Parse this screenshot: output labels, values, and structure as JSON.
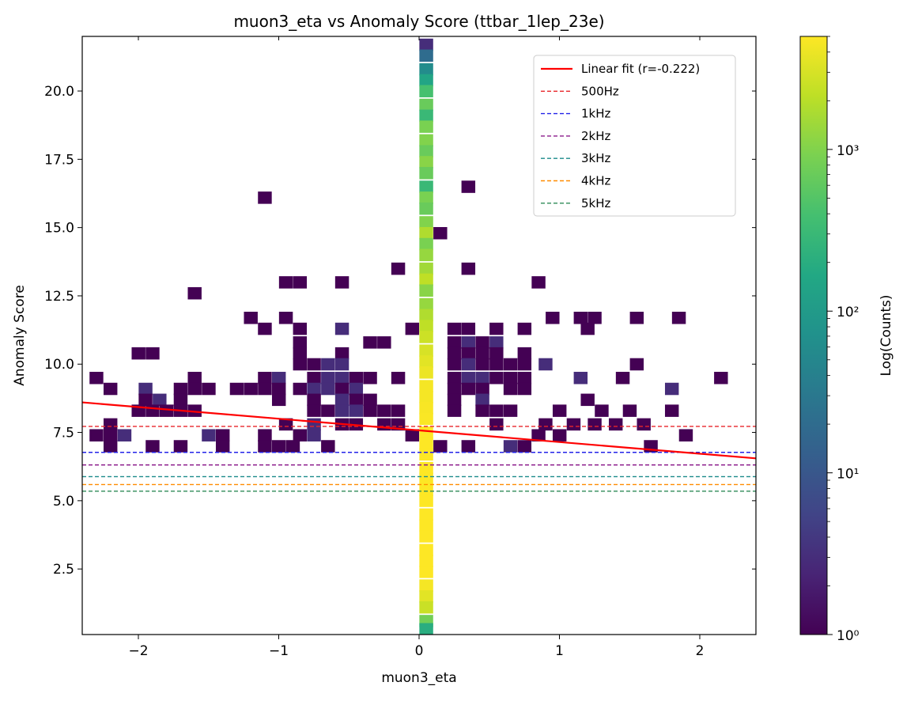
{
  "chart_data": {
    "type": "heatmap",
    "title": "muon3_eta vs Anomaly Score (ttbar_1lep_23e)",
    "xlabel": "muon3_eta",
    "ylabel": "Anomaly Score",
    "colorbar_label": "Log(Counts)",
    "colormap": "viridis",
    "color_scale": "log",
    "xlim": [
      -2.4,
      2.4
    ],
    "ylim": [
      0.1,
      22.0
    ],
    "x_ticks": [
      -2,
      -1,
      0,
      1,
      2
    ],
    "x_tick_labels": [
      "−2",
      "−1",
      "0",
      "1",
      "2"
    ],
    "y_ticks": [
      2.5,
      5.0,
      7.5,
      10.0,
      12.5,
      15.0,
      17.5,
      20.0
    ],
    "y_tick_labels": [
      "2.5",
      "5.0",
      "7.5",
      "10.0",
      "12.5",
      "15.0",
      "17.5",
      "20.0"
    ],
    "colorbar_ticks": [
      {
        "value": 1,
        "label": "10⁰"
      },
      {
        "value": 10,
        "label": "10¹"
      },
      {
        "value": 100,
        "label": "10²"
      },
      {
        "value": 1000,
        "label": "10³"
      }
    ],
    "colorbar_range": [
      1,
      5000
    ],
    "bin_width": {
      "x": 0.096,
      "y": 0.438
    },
    "bins": [
      [
        0.05,
        21.7,
        3
      ],
      [
        0.05,
        21.3,
        20
      ],
      [
        0.05,
        20.8,
        60
      ],
      [
        0.05,
        20.4,
        150
      ],
      [
        0.05,
        20.0,
        400
      ],
      [
        0.05,
        19.5,
        700
      ],
      [
        0.05,
        19.1,
        300
      ],
      [
        0.05,
        18.7,
        900
      ],
      [
        0.05,
        18.2,
        1000
      ],
      [
        0.05,
        17.8,
        700
      ],
      [
        0.05,
        17.4,
        1100
      ],
      [
        0.05,
        17.0,
        700
      ],
      [
        0.05,
        16.5,
        300
      ],
      [
        0.05,
        16.1,
        900
      ],
      [
        0.05,
        15.7,
        700
      ],
      [
        0.05,
        15.2,
        1000
      ],
      [
        0.05,
        14.8,
        1800
      ],
      [
        0.05,
        14.4,
        900
      ],
      [
        0.05,
        14.0,
        1300
      ],
      [
        0.05,
        13.5,
        1500
      ],
      [
        0.05,
        13.1,
        2200
      ],
      [
        0.05,
        12.7,
        1100
      ],
      [
        0.05,
        12.2,
        1300
      ],
      [
        0.05,
        11.8,
        1800
      ],
      [
        0.05,
        11.4,
        2200
      ],
      [
        0.05,
        11.0,
        2600
      ],
      [
        0.05,
        10.5,
        3000
      ],
      [
        0.05,
        10.1,
        3500
      ],
      [
        0.05,
        9.7,
        4000
      ],
      [
        0.05,
        9.2,
        4500
      ],
      [
        0.05,
        8.8,
        4500
      ],
      [
        0.05,
        8.4,
        4700
      ],
      [
        0.05,
        8.0,
        4800
      ],
      [
        0.05,
        7.5,
        5000
      ],
      [
        0.05,
        7.1,
        5000
      ],
      [
        0.05,
        6.7,
        5000
      ],
      [
        0.05,
        6.2,
        5000
      ],
      [
        0.05,
        5.8,
        5000
      ],
      [
        0.05,
        5.4,
        5000
      ],
      [
        0.05,
        5.0,
        5000
      ],
      [
        0.05,
        4.5,
        5000
      ],
      [
        0.05,
        4.1,
        5000
      ],
      [
        0.05,
        3.7,
        5000
      ],
      [
        0.05,
        3.2,
        5000
      ],
      [
        0.05,
        2.8,
        5000
      ],
      [
        0.05,
        2.4,
        5000
      ],
      [
        0.05,
        1.9,
        4500
      ],
      [
        0.05,
        1.5,
        3500
      ],
      [
        0.05,
        1.1,
        2500
      ],
      [
        0.05,
        0.6,
        800
      ],
      [
        0.05,
        0.3,
        200
      ],
      [
        -1.1,
        16.1,
        1
      ],
      [
        0.35,
        16.5,
        1
      ],
      [
        0.15,
        14.8,
        1
      ],
      [
        -0.15,
        13.5,
        1
      ],
      [
        0.35,
        13.5,
        1
      ],
      [
        -0.95,
        13.0,
        1
      ],
      [
        -0.85,
        13.0,
        1
      ],
      [
        -0.55,
        13.0,
        1
      ],
      [
        0.85,
        13.0,
        1
      ],
      [
        -1.6,
        12.6,
        1
      ],
      [
        -1.2,
        11.7,
        1
      ],
      [
        -0.95,
        11.7,
        1
      ],
      [
        0.95,
        11.7,
        1
      ],
      [
        1.15,
        11.7,
        1
      ],
      [
        1.25,
        11.7,
        1
      ],
      [
        1.55,
        11.7,
        1
      ],
      [
        1.85,
        11.7,
        1
      ],
      [
        -1.1,
        11.3,
        1
      ],
      [
        -0.85,
        11.3,
        1
      ],
      [
        -0.55,
        11.3,
        3
      ],
      [
        -0.05,
        11.3,
        1
      ],
      [
        0.25,
        11.3,
        1
      ],
      [
        0.35,
        11.3,
        1
      ],
      [
        0.55,
        11.3,
        1
      ],
      [
        0.75,
        11.3,
        1
      ],
      [
        1.2,
        11.3,
        1
      ],
      [
        -0.35,
        10.8,
        1
      ],
      [
        -0.25,
        10.8,
        1
      ],
      [
        -0.85,
        10.8,
        1
      ],
      [
        0.25,
        10.8,
        1
      ],
      [
        0.35,
        10.8,
        3
      ],
      [
        0.45,
        10.8,
        1
      ],
      [
        0.55,
        10.8,
        3
      ],
      [
        -2.0,
        10.4,
        1
      ],
      [
        -1.9,
        10.4,
        1
      ],
      [
        -0.85,
        10.4,
        1
      ],
      [
        -0.55,
        10.4,
        1
      ],
      [
        0.25,
        10.4,
        1
      ],
      [
        0.35,
        10.4,
        1
      ],
      [
        0.45,
        10.4,
        1
      ],
      [
        0.55,
        10.4,
        1
      ],
      [
        0.75,
        10.4,
        1
      ],
      [
        -0.85,
        10.0,
        1
      ],
      [
        -0.75,
        10.0,
        1
      ],
      [
        -0.65,
        10.0,
        3
      ],
      [
        -0.55,
        10.0,
        3
      ],
      [
        0.25,
        10.0,
        1
      ],
      [
        0.35,
        10.0,
        3
      ],
      [
        0.45,
        10.0,
        1
      ],
      [
        0.55,
        10.0,
        1
      ],
      [
        0.65,
        10.0,
        1
      ],
      [
        0.75,
        10.0,
        1
      ],
      [
        0.9,
        10.0,
        3
      ],
      [
        1.55,
        10.0,
        1
      ],
      [
        -2.3,
        9.5,
        1
      ],
      [
        -1.6,
        9.5,
        1
      ],
      [
        -1.1,
        9.5,
        1
      ],
      [
        -1.0,
        9.5,
        3
      ],
      [
        -0.75,
        9.5,
        1
      ],
      [
        -0.65,
        9.5,
        3
      ],
      [
        -0.55,
        9.5,
        3
      ],
      [
        -0.45,
        9.5,
        1
      ],
      [
        -0.35,
        9.5,
        1
      ],
      [
        -0.15,
        9.5,
        1
      ],
      [
        0.25,
        9.5,
        1
      ],
      [
        0.35,
        9.5,
        3
      ],
      [
        0.45,
        9.5,
        3
      ],
      [
        0.55,
        9.5,
        1
      ],
      [
        0.65,
        9.5,
        1
      ],
      [
        0.75,
        9.5,
        1
      ],
      [
        1.15,
        9.5,
        3
      ],
      [
        1.45,
        9.5,
        1
      ],
      [
        2.15,
        9.5,
        1
      ],
      [
        -2.2,
        9.1,
        1
      ],
      [
        -1.95,
        9.1,
        3
      ],
      [
        -1.7,
        9.1,
        1
      ],
      [
        -1.6,
        9.1,
        1
      ],
      [
        -1.5,
        9.1,
        1
      ],
      [
        -1.3,
        9.1,
        1
      ],
      [
        -1.2,
        9.1,
        1
      ],
      [
        -1.1,
        9.1,
        1
      ],
      [
        -1.0,
        9.1,
        1
      ],
      [
        -0.85,
        9.1,
        1
      ],
      [
        -0.75,
        9.1,
        3
      ],
      [
        -0.65,
        9.1,
        3
      ],
      [
        -0.55,
        9.1,
        1
      ],
      [
        -0.45,
        9.1,
        3
      ],
      [
        0.25,
        9.1,
        1
      ],
      [
        0.35,
        9.1,
        1
      ],
      [
        0.45,
        9.1,
        1
      ],
      [
        0.65,
        9.1,
        1
      ],
      [
        0.75,
        9.1,
        1
      ],
      [
        1.8,
        9.1,
        3
      ],
      [
        -1.95,
        8.7,
        1
      ],
      [
        -1.85,
        8.7,
        3
      ],
      [
        -1.7,
        8.7,
        1
      ],
      [
        -1.0,
        8.7,
        1
      ],
      [
        -0.75,
        8.7,
        1
      ],
      [
        -0.55,
        8.7,
        3
      ],
      [
        -0.45,
        8.7,
        1
      ],
      [
        -0.35,
        8.7,
        1
      ],
      [
        0.25,
        8.7,
        1
      ],
      [
        0.45,
        8.7,
        3
      ],
      [
        1.2,
        8.7,
        1
      ],
      [
        -2.0,
        8.3,
        1
      ],
      [
        -1.9,
        8.3,
        1
      ],
      [
        -1.8,
        8.3,
        1
      ],
      [
        -1.7,
        8.3,
        1
      ],
      [
        -1.6,
        8.3,
        1
      ],
      [
        -0.75,
        8.3,
        1
      ],
      [
        -0.65,
        8.3,
        1
      ],
      [
        -0.55,
        8.3,
        3
      ],
      [
        -0.45,
        8.3,
        3
      ],
      [
        -0.35,
        8.3,
        1
      ],
      [
        -0.25,
        8.3,
        1
      ],
      [
        -0.15,
        8.3,
        1
      ],
      [
        0.25,
        8.3,
        1
      ],
      [
        0.45,
        8.3,
        1
      ],
      [
        0.55,
        8.3,
        1
      ],
      [
        0.65,
        8.3,
        1
      ],
      [
        1.0,
        8.3,
        1
      ],
      [
        1.3,
        8.3,
        1
      ],
      [
        1.5,
        8.3,
        1
      ],
      [
        1.8,
        8.3,
        1
      ],
      [
        -2.2,
        7.8,
        1
      ],
      [
        -0.95,
        7.8,
        1
      ],
      [
        -0.75,
        7.8,
        3
      ],
      [
        -0.55,
        7.8,
        1
      ],
      [
        -0.45,
        7.8,
        1
      ],
      [
        -0.25,
        7.8,
        1
      ],
      [
        -0.15,
        7.8,
        1
      ],
      [
        0.55,
        7.8,
        1
      ],
      [
        0.9,
        7.8,
        1
      ],
      [
        1.1,
        7.8,
        1
      ],
      [
        1.25,
        7.8,
        1
      ],
      [
        1.4,
        7.8,
        1
      ],
      [
        1.6,
        7.8,
        1
      ],
      [
        -2.3,
        7.4,
        1
      ],
      [
        -2.2,
        7.4,
        1
      ],
      [
        -2.1,
        7.4,
        3
      ],
      [
        -1.5,
        7.4,
        3
      ],
      [
        -1.4,
        7.4,
        1
      ],
      [
        -1.1,
        7.4,
        1
      ],
      [
        -0.85,
        7.4,
        1
      ],
      [
        -0.75,
        7.4,
        3
      ],
      [
        -0.05,
        7.4,
        1
      ],
      [
        0.85,
        7.4,
        1
      ],
      [
        1.0,
        7.4,
        1
      ],
      [
        1.9,
        7.4,
        1
      ],
      [
        -2.2,
        7.0,
        1
      ],
      [
        -1.9,
        7.0,
        1
      ],
      [
        -1.7,
        7.0,
        1
      ],
      [
        -1.4,
        7.0,
        1
      ],
      [
        -1.1,
        7.0,
        1
      ],
      [
        -1.0,
        7.0,
        1
      ],
      [
        -0.9,
        7.0,
        1
      ],
      [
        -0.65,
        7.0,
        1
      ],
      [
        0.15,
        7.0,
        1
      ],
      [
        0.35,
        7.0,
        1
      ],
      [
        0.65,
        7.0,
        3
      ],
      [
        0.75,
        7.0,
        1
      ],
      [
        1.65,
        7.0,
        1
      ]
    ],
    "threshold_lines": [
      {
        "label": "500Hz",
        "y": 7.72,
        "color": "#e8262a"
      },
      {
        "label": "1kHz",
        "y": 6.77,
        "color": "#2323e8"
      },
      {
        "label": "2kHz",
        "y": 6.31,
        "color": "#8b1a8b"
      },
      {
        "label": "3kHz",
        "y": 5.88,
        "color": "#1a8a8a"
      },
      {
        "label": "4kHz",
        "y": 5.59,
        "color": "#ff8c00"
      },
      {
        "label": "5kHz",
        "y": 5.35,
        "color": "#2e8b57"
      }
    ],
    "fit_line": {
      "label": "Linear fit (r=-0.222)",
      "x": [
        -2.4,
        2.4
      ],
      "y": [
        8.6,
        6.55
      ],
      "color": "#ff0000"
    }
  }
}
